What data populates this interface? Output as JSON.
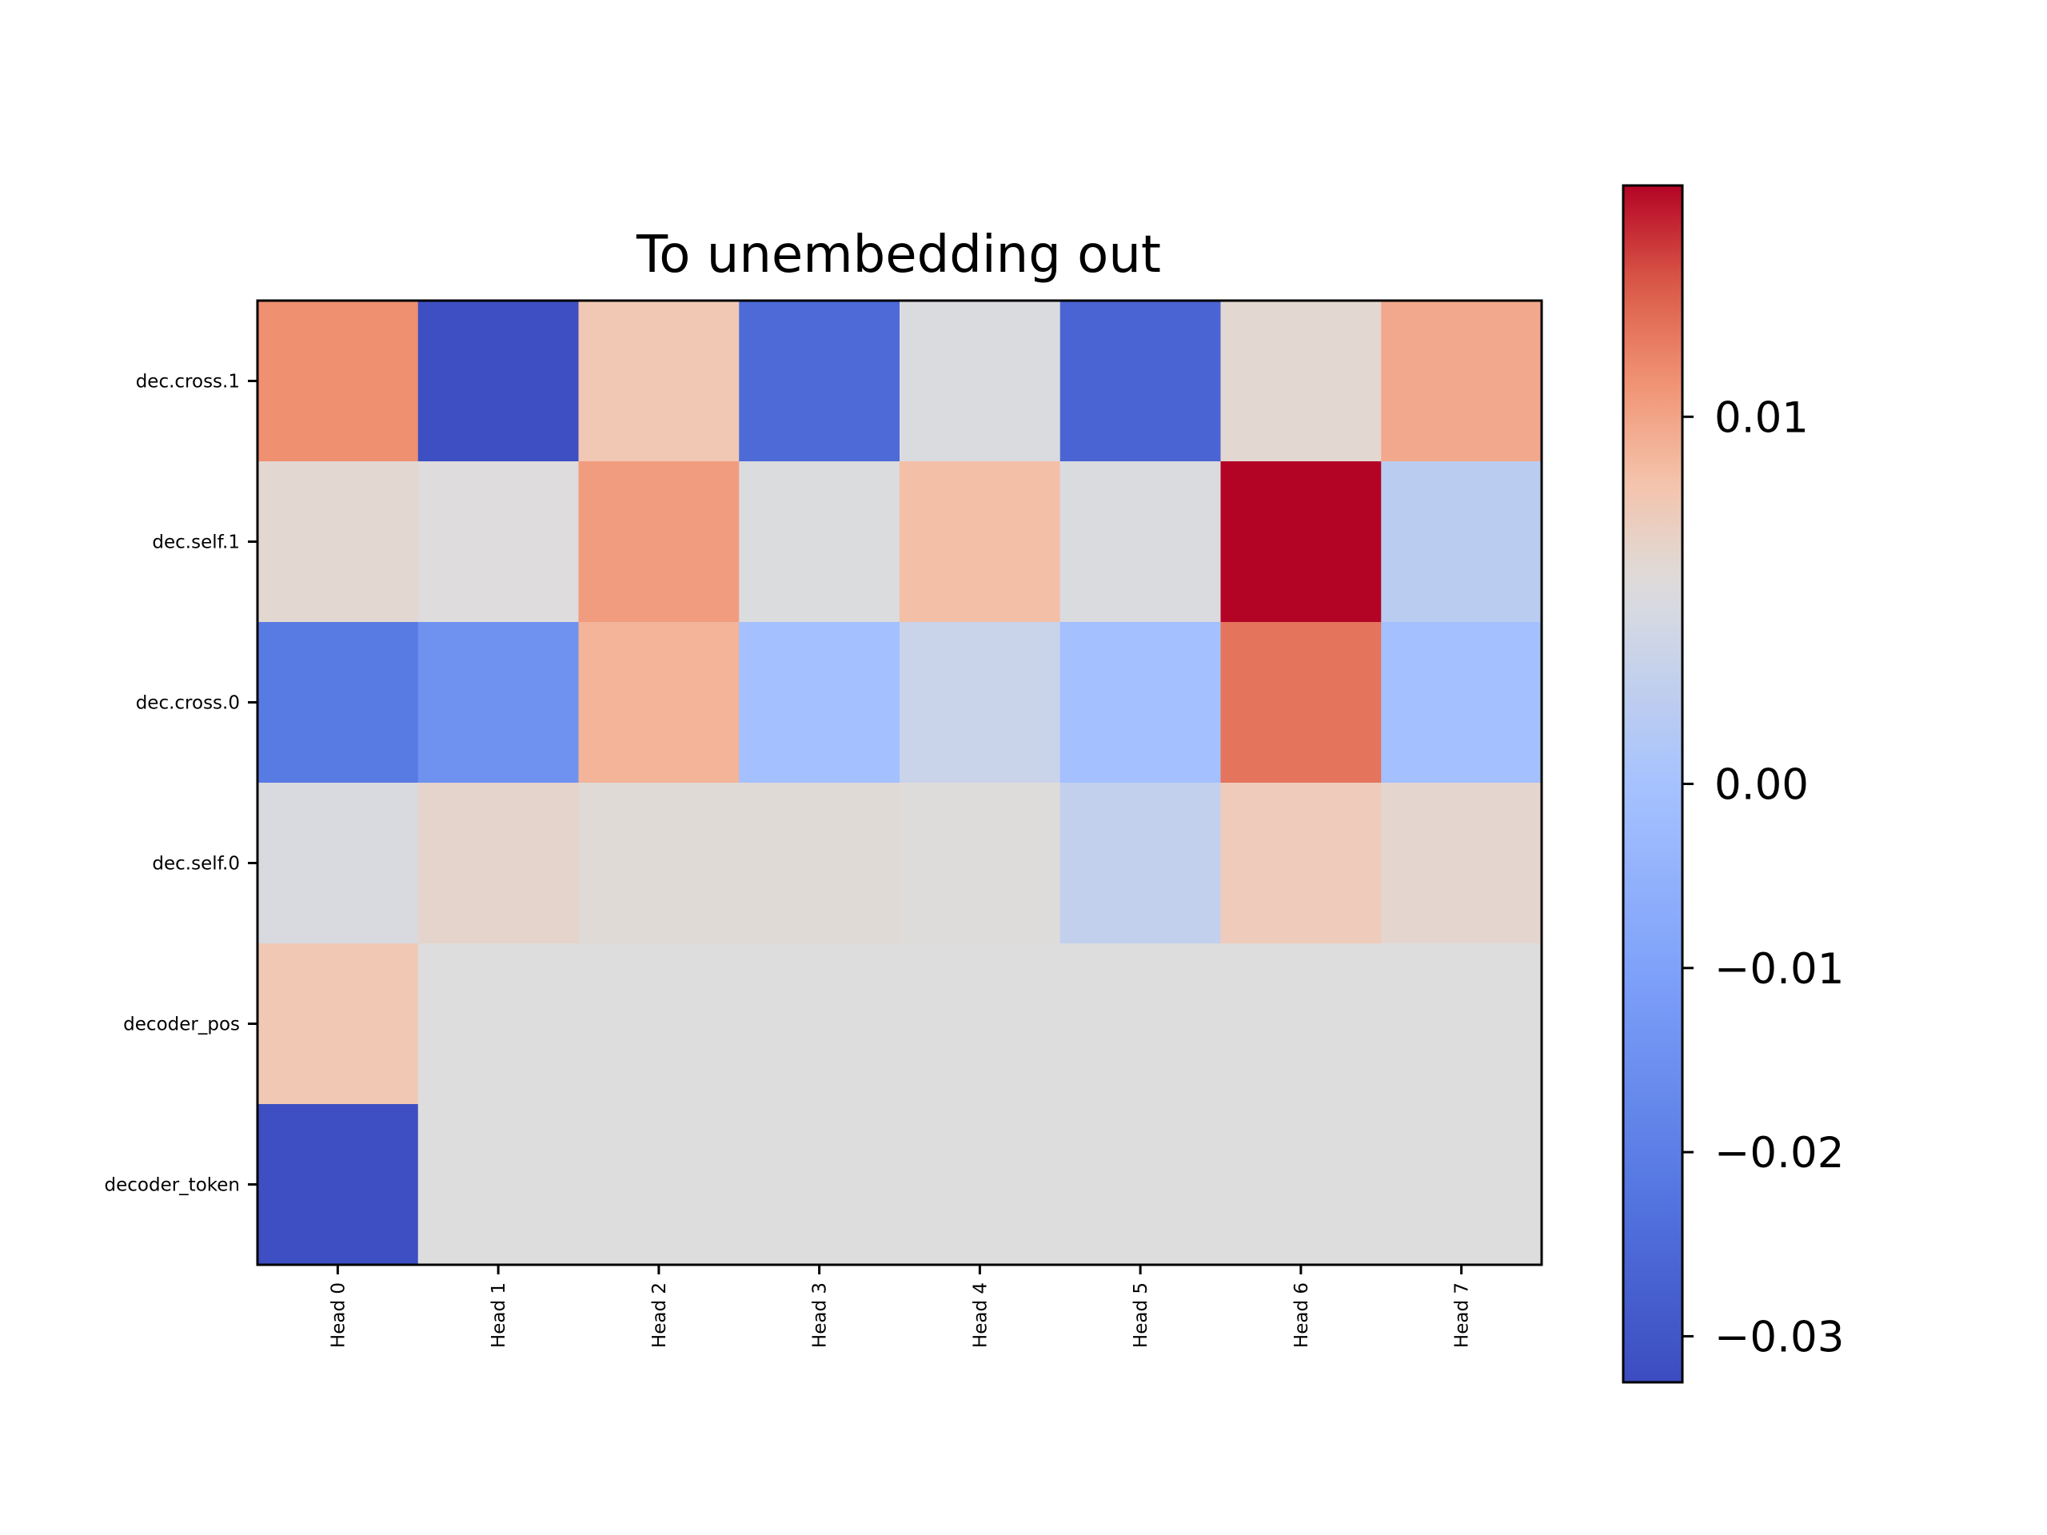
{
  "chart_data": {
    "type": "heatmap",
    "title": "To unembedding out",
    "xlabel": "",
    "ylabel": "",
    "rows": [
      "dec.cross.1",
      "dec.self.1",
      "dec.cross.0",
      "dec.self.0",
      "decoder_pos",
      "decoder_token"
    ],
    "columns": [
      "Head 0",
      "Head 1",
      "Head 2",
      "Head 3",
      "Head 4",
      "Head 5",
      "Head 6",
      "Head 7"
    ],
    "values": [
      [
        0.0085,
        -0.032,
        0.0035,
        -0.027,
        -0.0005,
        -0.028,
        0.001,
        0.0065
      ],
      [
        0.001,
        0.0001,
        0.0075,
        -0.0003,
        0.0045,
        -0.0005,
        0.0165,
        -0.005
      ],
      [
        -0.024,
        -0.019,
        0.0055,
        -0.0085,
        -0.003,
        -0.0085,
        0.0105,
        -0.0085
      ],
      [
        -0.0008,
        0.0015,
        0.0005,
        0.0005,
        0.0002,
        -0.004,
        0.003,
        0.0012
      ],
      [
        0.0035,
        0.0,
        0.0,
        0.0,
        0.0,
        0.0,
        0.0,
        0.0
      ],
      [
        -0.032,
        0.0,
        0.0,
        0.0,
        0.0,
        0.0,
        0.0,
        0.0
      ]
    ],
    "colormap": "coolwarm",
    "colorbar": {
      "min": -0.0325,
      "max": 0.0163,
      "center": 0.0,
      "ticks": [
        0.01,
        0.0,
        -0.01,
        -0.02,
        -0.03
      ],
      "tick_labels": [
        "0.01",
        "0.00",
        "−0.01",
        "−0.02",
        "−0.03"
      ]
    },
    "grid": false
  }
}
